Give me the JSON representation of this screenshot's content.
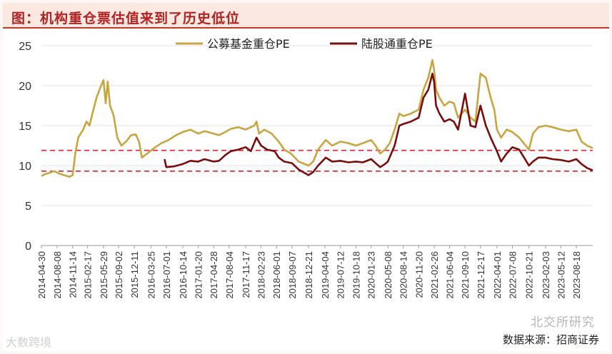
{
  "header": {
    "title": "图：机构重仓票估值来到了历史低位"
  },
  "footer": {
    "source": "数据来源：招商证券",
    "watermark": "北交所研究",
    "watermark_left": "大数跨境"
  },
  "colors": {
    "series_a": "#c9a53f",
    "series_b": "#7a0c0c",
    "ref_line": "#e0202a",
    "axis": "#999999",
    "title": "#b22222"
  },
  "chart_data": {
    "type": "line",
    "title": "图：机构重仓票估值来到了历史低位",
    "xlabel": "",
    "ylabel": "",
    "ylim": [
      0,
      25
    ],
    "yticks": [
      "0",
      "5",
      "10",
      "15",
      "20",
      "25"
    ],
    "x_range": [
      "2014-04-30",
      "2023-11-30"
    ],
    "categories": [
      "2014-04-30",
      "2014-08-08",
      "2014-11-14",
      "2015-02-17",
      "2015-05-29",
      "2015-09-02",
      "2015-12-11",
      "2016-03-25",
      "2016-07-01",
      "2016-10-14",
      "2017-01-20",
      "2017-04-28",
      "2017-08-04",
      "2017-11-17",
      "2018-02-23",
      "2018-06-01",
      "2018-09-07",
      "2018-12-21",
      "2019-04-04",
      "2019-07-12",
      "2019-10-18",
      "2020-01-23",
      "2020-05-08",
      "2020-08-14",
      "2020-11-20",
      "2021-02-26",
      "2021-06-04",
      "2021-09-10",
      "2021-12-17",
      "2022-04-01",
      "2022-07-08",
      "2022-10-21",
      "2023-02-03",
      "2023-05-12",
      "2023-08-18"
    ],
    "reference_lines": [
      11.9,
      9.3
    ],
    "legend_position": "top",
    "series": [
      {
        "name": "公募基金重仓PE",
        "points": [
          [
            "2014-04-30",
            8.7
          ],
          [
            "2014-05-20",
            8.9
          ],
          [
            "2014-06-20",
            9.1
          ],
          [
            "2014-07-20",
            9.3
          ],
          [
            "2014-08-20",
            9.0
          ],
          [
            "2014-09-20",
            8.8
          ],
          [
            "2014-10-25",
            8.6
          ],
          [
            "2014-11-14",
            8.8
          ],
          [
            "2014-12-01",
            11.5
          ],
          [
            "2014-12-20",
            13.5
          ],
          [
            "2015-01-20",
            14.5
          ],
          [
            "2015-02-10",
            15.5
          ],
          [
            "2015-03-01",
            15.0
          ],
          [
            "2015-03-20",
            16.5
          ],
          [
            "2015-04-15",
            18.5
          ],
          [
            "2015-05-10",
            19.8
          ],
          [
            "2015-05-29",
            20.7
          ],
          [
            "2015-06-12",
            17.8
          ],
          [
            "2015-06-25",
            20.5
          ],
          [
            "2015-07-10",
            17.5
          ],
          [
            "2015-08-01",
            16.3
          ],
          [
            "2015-08-25",
            13.5
          ],
          [
            "2015-09-20",
            12.5
          ],
          [
            "2015-10-20",
            13.0
          ],
          [
            "2015-11-20",
            13.8
          ],
          [
            "2015-12-20",
            13.9
          ],
          [
            "2016-01-10",
            13.0
          ],
          [
            "2016-01-28",
            11.0
          ],
          [
            "2016-03-01",
            11.5
          ],
          [
            "2016-04-15",
            12.2
          ],
          [
            "2016-06-01",
            12.8
          ],
          [
            "2016-07-15",
            13.2
          ],
          [
            "2016-09-01",
            13.8
          ],
          [
            "2016-10-14",
            14.2
          ],
          [
            "2016-12-01",
            14.5
          ],
          [
            "2017-01-20",
            14.0
          ],
          [
            "2017-03-01",
            14.3
          ],
          [
            "2017-04-28",
            14.0
          ],
          [
            "2017-06-01",
            13.8
          ],
          [
            "2017-07-10",
            14.2
          ],
          [
            "2017-08-15",
            14.6
          ],
          [
            "2017-10-01",
            14.8
          ],
          [
            "2017-11-17",
            14.5
          ],
          [
            "2018-01-10",
            15.0
          ],
          [
            "2018-01-25",
            15.5
          ],
          [
            "2018-02-10",
            14.0
          ],
          [
            "2018-03-15",
            14.5
          ],
          [
            "2018-05-01",
            14.0
          ],
          [
            "2018-06-15",
            13.0
          ],
          [
            "2018-07-20",
            12.0
          ],
          [
            "2018-09-01",
            11.5
          ],
          [
            "2018-10-20",
            10.5
          ],
          [
            "2018-12-21",
            10.0
          ],
          [
            "2019-01-20",
            10.5
          ],
          [
            "2019-02-20",
            12.0
          ],
          [
            "2019-04-10",
            13.2
          ],
          [
            "2019-05-20",
            12.5
          ],
          [
            "2019-07-12",
            13.0
          ],
          [
            "2019-09-01",
            12.8
          ],
          [
            "2019-10-18",
            12.5
          ],
          [
            "2019-12-01",
            12.8
          ],
          [
            "2020-01-23",
            13.2
          ],
          [
            "2020-02-20",
            12.5
          ],
          [
            "2020-03-20",
            11.5
          ],
          [
            "2020-04-20",
            12.0
          ],
          [
            "2020-05-20",
            12.8
          ],
          [
            "2020-06-20",
            14.5
          ],
          [
            "2020-07-20",
            16.5
          ],
          [
            "2020-08-14",
            16.2
          ],
          [
            "2020-10-01",
            16.5
          ],
          [
            "2020-11-20",
            17.0
          ],
          [
            "2020-12-20",
            19.5
          ],
          [
            "2021-01-20",
            21.0
          ],
          [
            "2021-02-15",
            23.2
          ],
          [
            "2021-02-26",
            22.0
          ],
          [
            "2021-03-10",
            19.5
          ],
          [
            "2021-04-01",
            18.5
          ],
          [
            "2021-05-01",
            17.5
          ],
          [
            "2021-06-04",
            18.0
          ],
          [
            "2021-07-01",
            17.8
          ],
          [
            "2021-07-28",
            16.0
          ],
          [
            "2021-09-10",
            17.0
          ],
          [
            "2021-10-15",
            16.0
          ],
          [
            "2021-11-15",
            15.5
          ],
          [
            "2021-12-17",
            21.5
          ],
          [
            "2022-01-20",
            21.0
          ],
          [
            "2022-02-20",
            18.5
          ],
          [
            "2022-03-15",
            17.0
          ],
          [
            "2022-04-01",
            14.5
          ],
          [
            "2022-04-27",
            13.5
          ],
          [
            "2022-06-01",
            14.5
          ],
          [
            "2022-07-08",
            14.2
          ],
          [
            "2022-08-20",
            13.5
          ],
          [
            "2022-10-21",
            12.0
          ],
          [
            "2022-11-15",
            14.0
          ],
          [
            "2022-12-20",
            14.8
          ],
          [
            "2023-02-03",
            15.0
          ],
          [
            "2023-03-20",
            14.8
          ],
          [
            "2023-05-12",
            14.5
          ],
          [
            "2023-07-01",
            14.3
          ],
          [
            "2023-08-18",
            14.5
          ],
          [
            "2023-09-20",
            13.0
          ],
          [
            "2023-10-25",
            12.5
          ],
          [
            "2023-11-30",
            12.2
          ]
        ]
      },
      {
        "name": "陆股通重仓PE",
        "points": [
          [
            "2016-06-20",
            10.8
          ],
          [
            "2016-07-01",
            9.8
          ],
          [
            "2016-08-20",
            9.9
          ],
          [
            "2016-10-14",
            10.2
          ],
          [
            "2016-12-01",
            10.6
          ],
          [
            "2017-01-20",
            10.5
          ],
          [
            "2017-03-01",
            10.8
          ],
          [
            "2017-04-28",
            10.5
          ],
          [
            "2017-06-01",
            10.6
          ],
          [
            "2017-07-10",
            11.3
          ],
          [
            "2017-08-15",
            11.8
          ],
          [
            "2017-10-01",
            12.0
          ],
          [
            "2017-11-17",
            12.3
          ],
          [
            "2017-12-20",
            11.8
          ],
          [
            "2018-01-25",
            13.5
          ],
          [
            "2018-02-23",
            12.5
          ],
          [
            "2018-04-01",
            12.0
          ],
          [
            "2018-05-20",
            11.8
          ],
          [
            "2018-06-15",
            11.0
          ],
          [
            "2018-07-20",
            10.5
          ],
          [
            "2018-09-07",
            10.3
          ],
          [
            "2018-10-20",
            9.5
          ],
          [
            "2018-12-21",
            8.8
          ],
          [
            "2019-01-20",
            9.2
          ],
          [
            "2019-02-20",
            10.0
          ],
          [
            "2019-04-10",
            11.0
          ],
          [
            "2019-05-20",
            10.5
          ],
          [
            "2019-07-12",
            10.6
          ],
          [
            "2019-09-01",
            10.4
          ],
          [
            "2019-10-18",
            10.5
          ],
          [
            "2019-12-01",
            10.4
          ],
          [
            "2020-01-23",
            10.8
          ],
          [
            "2020-03-20",
            9.8
          ],
          [
            "2020-04-20",
            10.2
          ],
          [
            "2020-05-08",
            10.5
          ],
          [
            "2020-06-20",
            12.5
          ],
          [
            "2020-07-20",
            15.0
          ],
          [
            "2020-08-14",
            15.2
          ],
          [
            "2020-10-01",
            15.5
          ],
          [
            "2020-11-20",
            16.0
          ],
          [
            "2020-12-20",
            18.5
          ],
          [
            "2021-01-20",
            19.5
          ],
          [
            "2021-02-15",
            21.5
          ],
          [
            "2021-02-26",
            20.5
          ],
          [
            "2021-03-10",
            17.5
          ],
          [
            "2021-04-01",
            16.5
          ],
          [
            "2021-05-01",
            15.5
          ],
          [
            "2021-06-04",
            15.8
          ],
          [
            "2021-07-01",
            15.5
          ],
          [
            "2021-07-28",
            14.5
          ],
          [
            "2021-09-10",
            19.0
          ],
          [
            "2021-10-15",
            15.0
          ],
          [
            "2021-11-15",
            14.8
          ],
          [
            "2021-12-17",
            17.5
          ],
          [
            "2022-01-20",
            15.0
          ],
          [
            "2022-02-20",
            13.5
          ],
          [
            "2022-03-15",
            12.5
          ],
          [
            "2022-04-01",
            11.8
          ],
          [
            "2022-04-27",
            10.5
          ],
          [
            "2022-06-01",
            11.5
          ],
          [
            "2022-07-08",
            12.3
          ],
          [
            "2022-08-20",
            12.0
          ],
          [
            "2022-10-21",
            10.0
          ],
          [
            "2022-11-15",
            10.5
          ],
          [
            "2022-12-20",
            11.0
          ],
          [
            "2023-02-03",
            11.0
          ],
          [
            "2023-03-20",
            10.8
          ],
          [
            "2023-05-12",
            10.7
          ],
          [
            "2023-07-01",
            10.5
          ],
          [
            "2023-08-18",
            10.8
          ],
          [
            "2023-09-20",
            10.2
          ],
          [
            "2023-10-25",
            9.7
          ],
          [
            "2023-11-30",
            9.4
          ]
        ]
      }
    ]
  }
}
